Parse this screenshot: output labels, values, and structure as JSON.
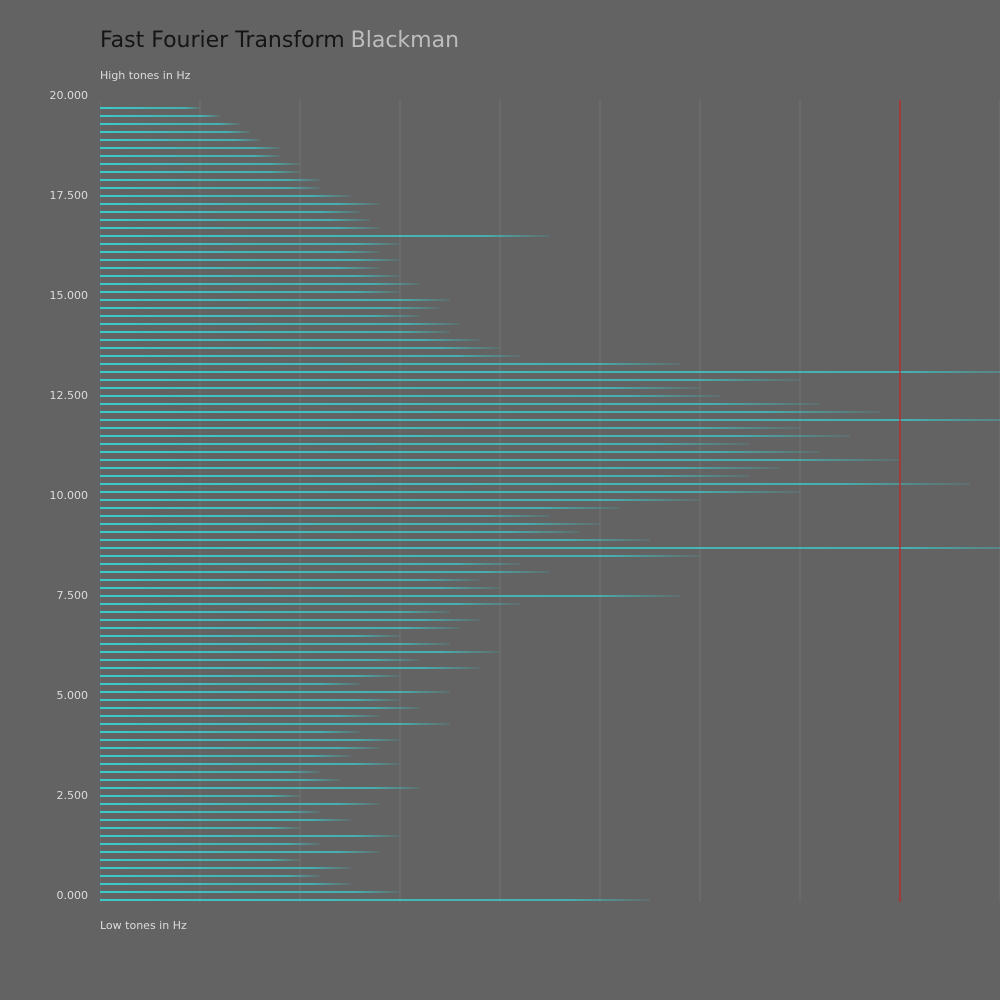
{
  "chart_data": {
    "type": "bar",
    "orientation": "horizontal",
    "title": "Fast Fourier Transform",
    "subtitle": "Blackman",
    "y_label_top": "High tones in Hz",
    "y_label_bottom": "Low tones in Hz",
    "color": "#3ec8c8",
    "y": [
      0,
      200,
      400,
      600,
      800,
      1000,
      1200,
      1400,
      1600,
      1800,
      2000,
      2200,
      2400,
      2600,
      2800,
      3000,
      3200,
      3400,
      3600,
      3800,
      4000,
      4200,
      4400,
      4600,
      4800,
      5000,
      5200,
      5400,
      5600,
      5800,
      6000,
      6200,
      6400,
      6600,
      6800,
      7000,
      7200,
      7400,
      7600,
      7800,
      8000,
      8200,
      8400,
      8600,
      8800,
      9000,
      9200,
      9400,
      9600,
      9800,
      10000,
      10200,
      10400,
      10600,
      10800,
      11000,
      11200,
      11400,
      11600,
      11800,
      12000,
      12200,
      12400,
      12600,
      12800,
      13000,
      13200,
      13400,
      13600,
      13800,
      14000,
      14200,
      14400,
      14600,
      14800,
      15000,
      15200,
      15400,
      15600,
      15800,
      16000,
      16200,
      16400,
      16600,
      16800,
      17000,
      17200,
      17400,
      17600,
      17800,
      18000,
      18200,
      18400,
      18600,
      18800,
      19000,
      19200,
      19400,
      19600,
      19800
    ],
    "values": [
      55,
      30,
      25,
      22,
      25,
      20,
      28,
      22,
      30,
      20,
      25,
      22,
      28,
      20,
      32,
      24,
      22,
      30,
      25,
      28,
      30,
      26,
      35,
      28,
      32,
      30,
      35,
      26,
      30,
      38,
      32,
      40,
      35,
      30,
      36,
      38,
      35,
      42,
      58,
      40,
      38,
      45,
      42,
      60,
      95,
      55,
      48,
      50,
      45,
      52,
      60,
      70,
      87,
      65,
      68,
      80,
      72,
      65,
      75,
      70,
      95,
      78,
      72,
      62,
      60,
      70,
      95,
      58,
      42,
      40,
      38,
      35,
      36,
      32,
      34,
      35,
      30,
      32,
      30,
      28,
      30,
      28,
      30,
      45,
      28,
      27,
      26,
      28,
      25,
      22,
      22,
      20,
      20,
      18,
      18,
      16,
      15,
      14,
      12,
      10
    ],
    "xlim": [
      0,
      90
    ],
    "xticks": [
      0,
      10,
      20,
      30,
      40,
      50,
      60,
      70,
      80,
      90
    ],
    "ylim": [
      0,
      20000
    ],
    "yticks": [
      {
        "value": 0,
        "label": "0.000"
      },
      {
        "value": 2500,
        "label": "2.500"
      },
      {
        "value": 5000,
        "label": "5.000"
      },
      {
        "value": 7500,
        "label": "7.500"
      },
      {
        "value": 10000,
        "label": "10.000"
      },
      {
        "value": 12500,
        "label": "12.500"
      },
      {
        "value": 15000,
        "label": "15.000"
      },
      {
        "value": 17500,
        "label": "17.500"
      },
      {
        "value": 20000,
        "label": "20.000"
      }
    ],
    "grid": true,
    "marker": {
      "value": 80,
      "color": "#cc2222"
    }
  }
}
